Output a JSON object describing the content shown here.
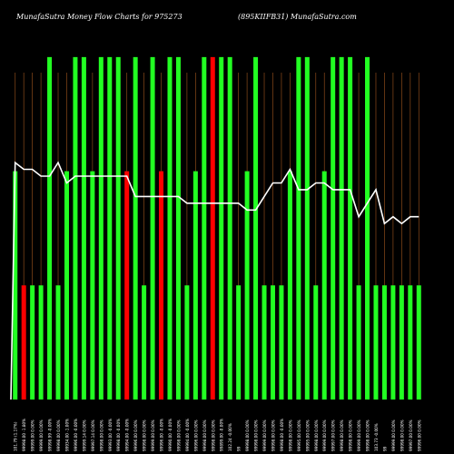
{
  "header": {
    "left": "MunafaSutra  Money Flow  Charts for 975273",
    "right": "(895KIIFB31) MunafaSutra.com"
  },
  "colors": {
    "background": "#000000",
    "up": "#22ff22",
    "down": "#ff0000",
    "price_line": "#ffffff",
    "grid": "#8b4a1a"
  },
  "chart_data": {
    "type": "bar",
    "categories": [
      "101.79 (1.17%)",
      "99998.00 -1.80%",
      "99999.00 0.00%",
      "99999.00 0.00%",
      "99998.99 -0.00%",
      "99998.00 0.00%",
      "99934.00 -1.00%",
      "99996.00 -0.00%",
      "99999.14 0.00%",
      "99997.14 0.00%",
      "99998.00 0.00%",
      "99993.00 -0.00%",
      "99998.00 -0.00%",
      "99994.00 -0.00%",
      "99996.00 0.00%",
      "99998.00 0.00%",
      "99999.00 0.00%",
      "99996.00 -0.00%",
      "99990.00 -0.00%",
      "99998.00 0.00%",
      "99994.00 -0.00%",
      "99996.00 0.00%",
      "99998.00 0.00%",
      "99998.00 0.00%",
      "99899.00 -0.00%",
      "102.24 -0.00%",
      "99",
      "99998.00 0.00%",
      "99998.00 0.00%",
      "99999.00 0.00%",
      "99998.00 0.00%",
      "99998.00 -0.00%",
      "99998.00 0.00%",
      "99995.00 0.00%",
      "99995.00 0.00%",
      "99998.00 0.00%",
      "99999.00 0.00%",
      "99997.00 0.00%",
      "99998.00 0.00%",
      "99998.00 0.00%",
      "99999.00 0.00%",
      "99998.00 0.00%",
      "103.73 -0.00%",
      "99",
      "99999.00 0.00%",
      "99998.00 0.00%",
      "99997.00 0.00%",
      "99996.00 0.00%"
    ],
    "series": [
      {
        "values": [
          2,
          1,
          1,
          1,
          3,
          1,
          2,
          3,
          3,
          2,
          3,
          3,
          3,
          2,
          3,
          1,
          3,
          2,
          3,
          3,
          1,
          2,
          3,
          3,
          3,
          3,
          1,
          2,
          3,
          1,
          1,
          1,
          2,
          3,
          3,
          1,
          2,
          3,
          3,
          3,
          1,
          3,
          1,
          1,
          1,
          1,
          1,
          1
        ],
        "directions": [
          "up",
          "down",
          "up",
          "up",
          "up",
          "up",
          "up",
          "up",
          "up",
          "up",
          "up",
          "up",
          "up",
          "down",
          "up",
          "up",
          "up",
          "down",
          "up",
          "up",
          "up",
          "up",
          "up",
          "down",
          "up",
          "up",
          "up",
          "up",
          "up",
          "up",
          "up",
          "up",
          "up",
          "up",
          "up",
          "up",
          "up",
          "up",
          "up",
          "up",
          "up",
          "up",
          "up",
          "up",
          "up",
          "up",
          "up",
          "up"
        ]
      },
      {
        "values": [
          99998.0,
          99997.9,
          99997.9,
          99997.8,
          99997.8,
          99998.0,
          99997.7,
          99997.8,
          99997.8,
          99997.8,
          99997.8,
          99997.8,
          99997.8,
          99997.8,
          99997.5,
          99997.5,
          99997.5,
          99997.5,
          99997.5,
          99997.5,
          99997.4,
          99997.4,
          99997.4,
          99997.4,
          99997.4,
          99997.4,
          99997.4,
          99997.3,
          99997.3,
          99997.5,
          99997.7,
          99997.7,
          99997.9,
          99997.6,
          99997.6,
          99997.7,
          99997.7,
          99997.6,
          99997.6,
          99997.6,
          99997.2,
          99997.4,
          99997.6,
          99997.1,
          99997.2,
          99997.1,
          99997.2,
          99997.2
        ]
      }
    ],
    "ylim_volume": [
      0,
      3.5
    ],
    "ylim_price": [
      99994.5,
      100000
    ],
    "grid": "vertical"
  }
}
